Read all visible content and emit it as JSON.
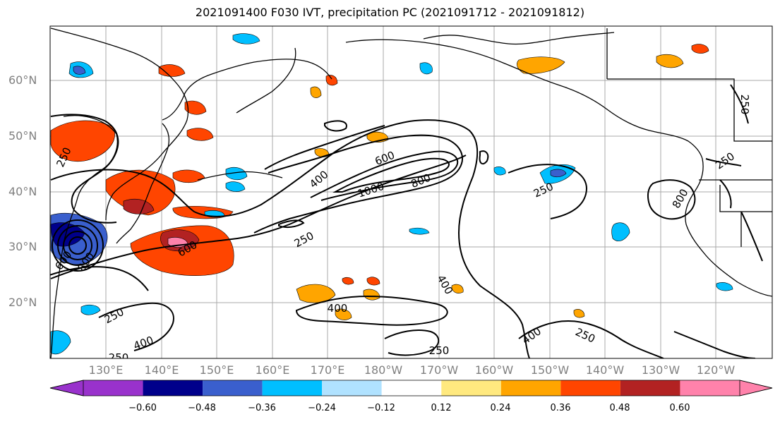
{
  "title": "2021091400 F030 IVT, precipitation PC (2021091712 - 2021091812)",
  "lat_labels": [
    "60°N",
    "50°N",
    "40°N",
    "30°N",
    "20°N"
  ],
  "lon_labels": [
    "130°E",
    "140°E",
    "150°E",
    "160°E",
    "170°E",
    "180°W",
    "170°W",
    "160°W",
    "150°W",
    "140°W",
    "130°W",
    "120°W"
  ],
  "colorbar": {
    "colors": [
      "#9932cc",
      "#00008b",
      "#3a5fcd",
      "#00bfff",
      "#b0e2ff",
      "#ffffff",
      "#ffe97f",
      "#ffa500",
      "#ff4500",
      "#b22222",
      "#ff82ab"
    ],
    "tick_labels": [
      "−0.60",
      "−0.48",
      "−0.36",
      "−0.24",
      "−0.12",
      "0.12",
      "0.24",
      "0.36",
      "0.48",
      "0.60"
    ],
    "extend": "both"
  },
  "contour_labels": [
    "250",
    "400",
    "600",
    "800",
    "1000",
    "800",
    "600",
    "400",
    "250",
    "250",
    "400",
    "250",
    "400",
    "250",
    "250",
    "250",
    "250",
    "800",
    "600",
    "400",
    "250",
    "250"
  ],
  "map": {
    "extent": "120°E–110°W, 10°N–70°N",
    "gridlines": true,
    "contour_field": "IVT",
    "shaded_field": "precipitation PC"
  }
}
